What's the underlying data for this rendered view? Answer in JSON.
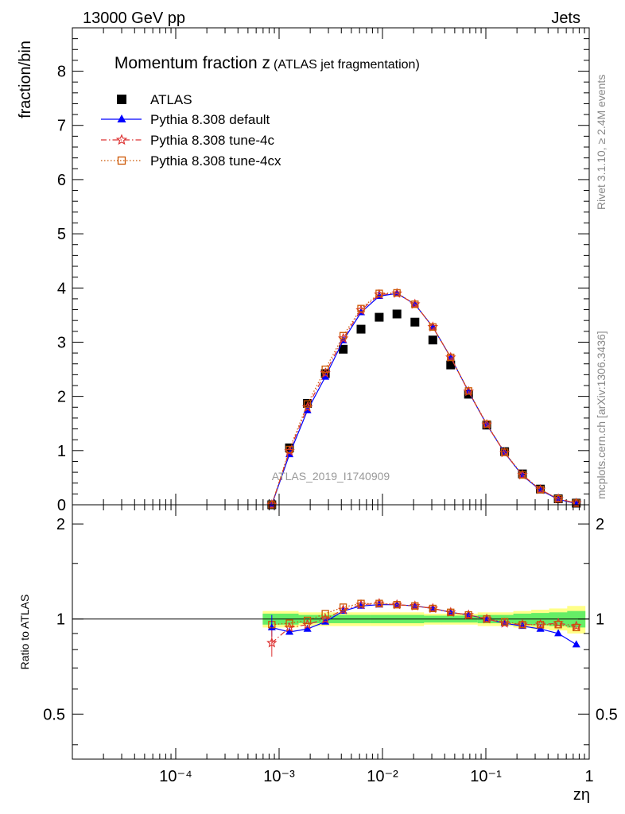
{
  "header": {
    "left": "13000 GeV pp",
    "right": "Jets"
  },
  "side_labels": {
    "rivet": "Rivet 3.1.10, ≥ 2.4M events",
    "mcplots": "mcplots.cern.ch [arXiv:1306.3436]"
  },
  "chart_data": [
    {
      "type": "scatter",
      "title_main": "Momentum fraction z",
      "title_sub": "(ATLAS jet fragmentation)",
      "ylabel": "fraction/bin",
      "xlabel": "zη",
      "watermark": "ATLAS_2019_I1740909",
      "xscale": "log",
      "xlim": [
        1e-05,
        1
      ],
      "ylim": [
        0,
        8.8
      ],
      "yticks": [
        0,
        1,
        2,
        3,
        4,
        5,
        6,
        7,
        8
      ],
      "x": [
        0.00085,
        0.00126,
        0.00188,
        0.0028,
        0.00417,
        0.0062,
        0.0093,
        0.0138,
        0.0206,
        0.0307,
        0.0457,
        0.068,
        0.102,
        0.152,
        0.226,
        0.337,
        0.502,
        0.75
      ],
      "series": [
        {
          "name": "ATLAS",
          "color": "#000000",
          "marker": "filled-square",
          "line": "none",
          "values": [
            0.0,
            1.05,
            1.87,
            2.42,
            2.87,
            3.24,
            3.46,
            3.52,
            3.37,
            3.04,
            2.58,
            2.04,
            1.47,
            0.98,
            0.57,
            0.29,
            0.11,
            0.03
          ]
        },
        {
          "name": "Pythia 8.308 default",
          "color": "#0000ff",
          "marker": "filled-triangle",
          "line": "solid",
          "values": [
            0.0,
            0.93,
            1.74,
            2.36,
            3.03,
            3.55,
            3.85,
            3.9,
            3.7,
            3.28,
            2.72,
            2.09,
            1.48,
            0.96,
            0.54,
            0.27,
            0.1,
            0.02
          ]
        },
        {
          "name": "Pythia 8.308 tune-4c",
          "color": "#dd3333",
          "marker": "open-star",
          "line": "dashdot",
          "values": [
            0.0,
            0.99,
            1.8,
            2.43,
            3.07,
            3.59,
            3.88,
            3.9,
            3.7,
            3.28,
            2.72,
            2.09,
            1.48,
            0.96,
            0.55,
            0.28,
            0.11,
            0.03
          ]
        },
        {
          "name": "Pythia 8.308 tune-4cx",
          "color": "#cc5500",
          "marker": "open-square",
          "line": "dotted",
          "values": [
            0.0,
            1.02,
            1.86,
            2.5,
            3.12,
            3.62,
            3.9,
            3.91,
            3.7,
            3.28,
            2.72,
            2.1,
            1.49,
            0.97,
            0.55,
            0.28,
            0.11,
            0.03
          ]
        }
      ]
    },
    {
      "type": "scatter",
      "ylabel": "Ratio to ATLAS",
      "xscale": "log",
      "xlim": [
        1e-05,
        1
      ],
      "ylim": [
        0.36,
        2.3
      ],
      "yscale": "log",
      "yticks": [
        0.5,
        1,
        2
      ],
      "xticks": [
        "10⁻⁴",
        "10⁻³",
        "10⁻²",
        "10⁻¹",
        "1"
      ],
      "x": [
        0.00085,
        0.00126,
        0.00188,
        0.0028,
        0.00417,
        0.0062,
        0.0093,
        0.0138,
        0.0206,
        0.0307,
        0.0457,
        0.068,
        0.102,
        0.152,
        0.226,
        0.337,
        0.502,
        0.75
      ],
      "bands": {
        "yellow": [
          0.06,
          0.06,
          0.05,
          0.05,
          0.05,
          0.05,
          0.05,
          0.05,
          0.05,
          0.04,
          0.04,
          0.04,
          0.05,
          0.05,
          0.06,
          0.07,
          0.08,
          0.1
        ],
        "green": [
          0.04,
          0.04,
          0.03,
          0.03,
          0.03,
          0.03,
          0.03,
          0.03,
          0.03,
          0.025,
          0.025,
          0.025,
          0.03,
          0.03,
          0.04,
          0.045,
          0.05,
          0.06
        ],
        "yellow_color": "#ffff88",
        "green_color": "#66ee66"
      },
      "series": [
        {
          "name": "Pythia 8.308 default",
          "color": "#0000ff",
          "marker": "filled-triangle",
          "line": "solid",
          "values": [
            0.94,
            0.91,
            0.93,
            0.98,
            1.06,
            1.1,
            1.11,
            1.11,
            1.1,
            1.08,
            1.05,
            1.03,
            1.0,
            0.97,
            0.95,
            0.93,
            0.9,
            0.83
          ]
        },
        {
          "name": "Pythia 8.308 tune-4c",
          "color": "#dd3333",
          "marker": "open-star",
          "line": "dashdot",
          "values": [
            0.84,
            0.94,
            0.96,
            1.0,
            1.07,
            1.11,
            1.12,
            1.11,
            1.1,
            1.08,
            1.05,
            1.03,
            1.0,
            0.97,
            0.96,
            0.96,
            0.97,
            0.95
          ]
        },
        {
          "name": "Pythia 8.308 tune-4cx",
          "color": "#cc5500",
          "marker": "open-square",
          "line": "dotted",
          "values": [
            0.96,
            0.97,
            0.99,
            1.04,
            1.09,
            1.12,
            1.12,
            1.11,
            1.1,
            1.08,
            1.05,
            1.03,
            1.0,
            0.98,
            0.96,
            0.96,
            0.96,
            0.94
          ]
        }
      ]
    }
  ]
}
